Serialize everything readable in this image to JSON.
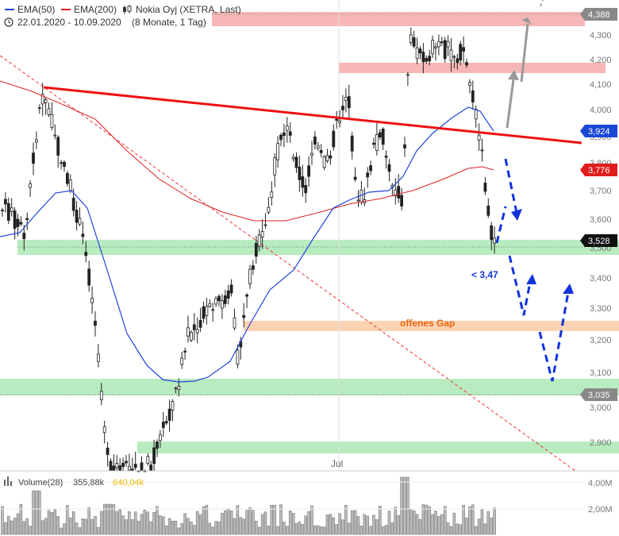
{
  "legend": {
    "ema50_label": "EMA(50)",
    "ema200_label": "EMA(200)",
    "instrument": "Nokia Oyj (XETRA, Last)",
    "date_range": "22.01.2020 - 10.09.2020",
    "period": "(8 Monate, 1 Tag)"
  },
  "colors": {
    "ema50": "#2244dd",
    "ema200": "#e02020",
    "resistance_zone": "#f7b7b7",
    "support_zone": "#b8ecc0",
    "gap_zone": "#fbd3b3",
    "trend_red": "#ee1111",
    "arrow_blue": "#1133dd",
    "arrow_gray": "#999999"
  },
  "price_axis": {
    "ticks": [
      "4,300",
      "4,200",
      "4,100",
      "4,000",
      "3,900",
      "3,800",
      "3,700",
      "3,600",
      "3,500",
      "3,400",
      "3,300",
      "3,200",
      "3,100",
      "3,000",
      "2,900"
    ],
    "tags": [
      {
        "label": "4,388",
        "style": "gray"
      },
      {
        "label": "3,924",
        "style": "blue"
      },
      {
        "label": "3,776",
        "style": "red"
      },
      {
        "label": "3,528",
        "style": "black"
      },
      {
        "label": "3,035",
        "style": "gray"
      }
    ]
  },
  "x_axis": {
    "month_label": "Jul"
  },
  "annotations": {
    "gap_label": "offenes Gap",
    "target_label": "< 3,47"
  },
  "volume": {
    "title": "Volume(28)",
    "value": "355,88k",
    "avg": "640,04k",
    "ticks": [
      "4,00M",
      "2,00M"
    ]
  },
  "chart_data": {
    "type": "candlestick",
    "instrument": "Nokia Oyj (XETRA, Last)",
    "period": "22.01.2020 - 10.09.2020",
    "series": [
      {
        "name": "EMA(50)",
        "last": 3.924
      },
      {
        "name": "EMA(200)",
        "last": 3.776
      }
    ],
    "resistance_zones": [
      [
        4.36,
        4.4
      ],
      [
        4.16,
        4.2
      ]
    ],
    "support_zones": [
      [
        3.5,
        3.55
      ],
      [
        3.03,
        3.09
      ],
      [
        2.87,
        2.91
      ]
    ],
    "gap_zone": [
      3.24,
      3.28
    ],
    "last_close": 3.528,
    "levels": [
      4.388,
      3.924,
      3.776,
      3.528,
      3.035
    ]
  }
}
